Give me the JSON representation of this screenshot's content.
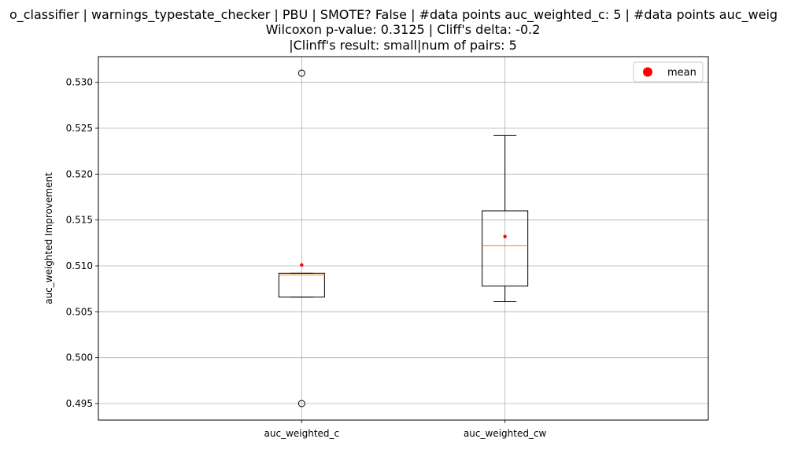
{
  "chart_data": {
    "type": "box",
    "title_lines": [
      "o_classifier | warnings_typestate_checker | PBU | SMOTE? False | #data points auc_weighted_c: 5 | #data points auc_weig",
      "Wilcoxon p-value: 0.3125 | Cliff's delta: -0.2",
      "|Clinff's result: small|num of pairs: 5"
    ],
    "ylabel": "auc_weighted Improvement",
    "xlabel": "",
    "ylim": [
      0.4932,
      0.5328
    ],
    "yticks": [
      0.495,
      0.5,
      0.505,
      0.51,
      0.515,
      0.52,
      0.525,
      0.53
    ],
    "ytick_labels": [
      "0.495",
      "0.500",
      "0.505",
      "0.510",
      "0.515",
      "0.520",
      "0.525",
      "0.530"
    ],
    "grid": true,
    "legend": {
      "position": "top-right",
      "entries": [
        {
          "label": "mean",
          "color": "#ff0000"
        }
      ]
    },
    "colors": {
      "box": "#000000",
      "median": "#ff7f0e",
      "mean": "#ff0000",
      "grid": "#b0b0b0"
    },
    "categories": [
      "auc_weighted_c",
      "auc_weighted_cw"
    ],
    "boxes": [
      {
        "name": "auc_weighted_c",
        "whisker_low": 0.5066,
        "q1": 0.5066,
        "median": 0.509,
        "q3": 0.5092,
        "whisker_high": 0.5092,
        "mean": 0.5101,
        "outliers": [
          0.531,
          0.495
        ]
      },
      {
        "name": "auc_weighted_cw",
        "whisker_low": 0.5061,
        "q1": 0.5078,
        "median": 0.5122,
        "q3": 0.516,
        "whisker_high": 0.5242,
        "mean": 0.5132,
        "outliers": []
      }
    ]
  }
}
